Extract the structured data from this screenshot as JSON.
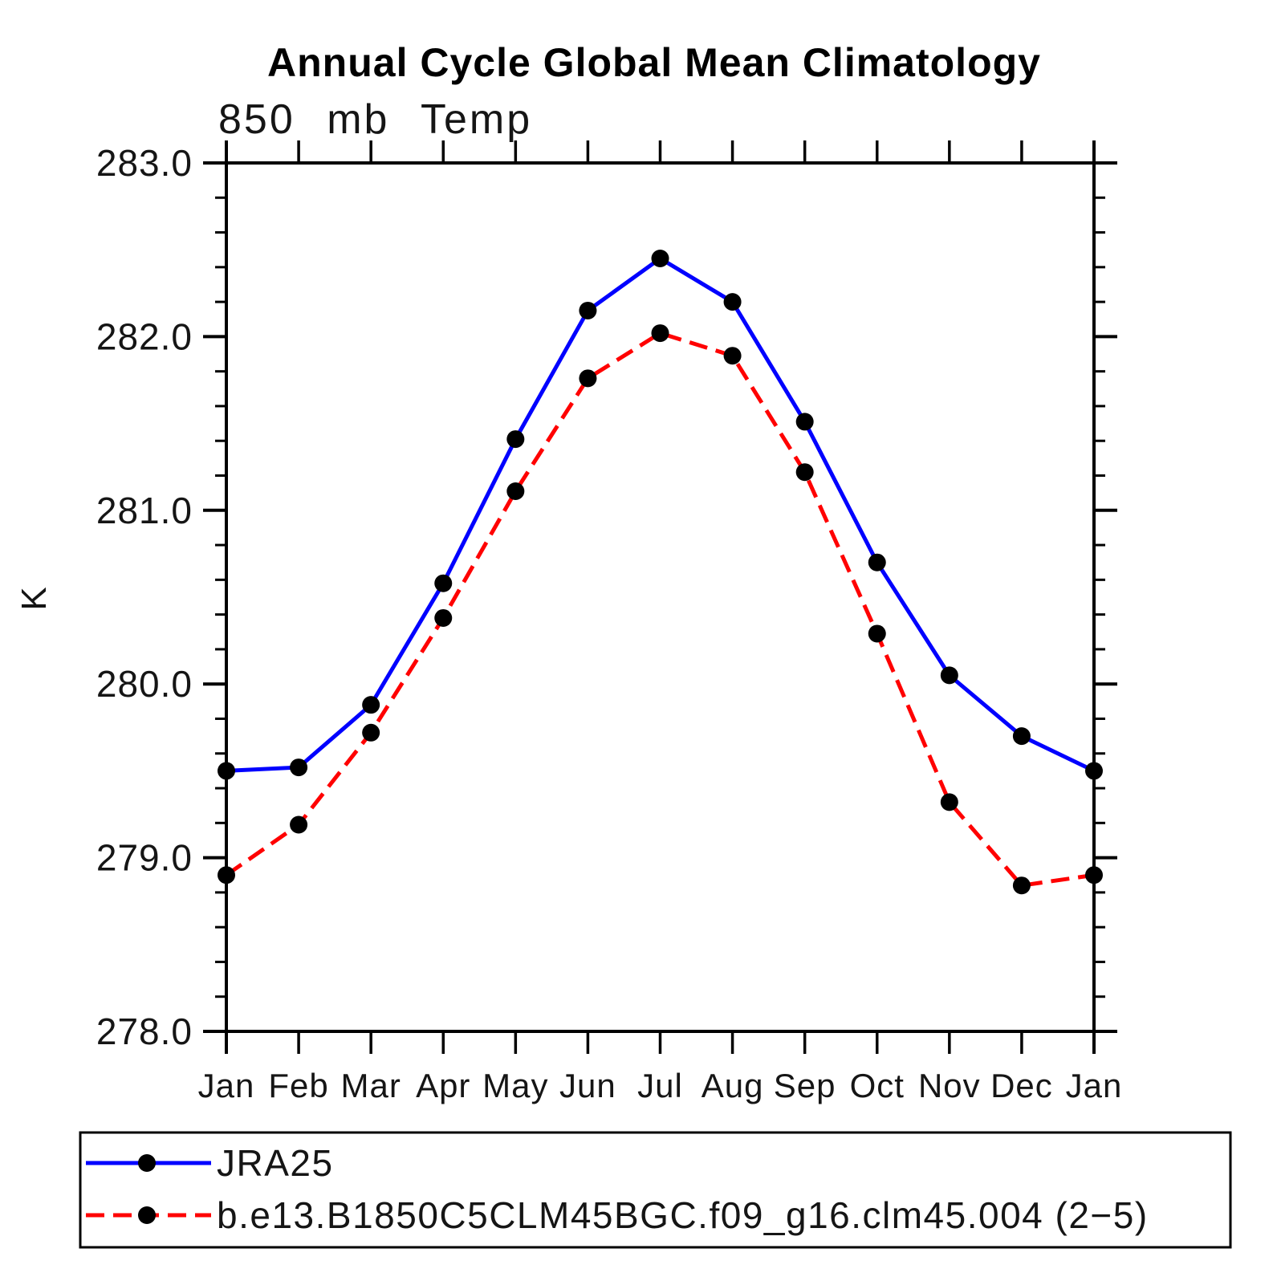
{
  "chart_data": {
    "type": "line",
    "title": "Annual Cycle Global Mean Climatology",
    "subtitle": "850 mb Temp",
    "ylabel": "K",
    "categories": [
      "Jan",
      "Feb",
      "Mar",
      "Apr",
      "May",
      "Jun",
      "Jul",
      "Aug",
      "Sep",
      "Oct",
      "Nov",
      "Dec",
      "Jan"
    ],
    "ylim": [
      278.0,
      283.0
    ],
    "yticks": [
      278.0,
      279.0,
      280.0,
      281.0,
      282.0,
      283.0
    ],
    "ytick_labels": [
      "278.0",
      "279.0",
      "280.0",
      "281.0",
      "282.0",
      "283.0"
    ],
    "minor_tick_step": 0.2,
    "grid": false,
    "legend_position": "bottom-left-box",
    "axis_color": "#000000",
    "marker_color": "#000000",
    "marker_shape": "filled-circle",
    "series": [
      {
        "name": "JRA25",
        "color": "#0000ff",
        "line_style": "solid",
        "values": [
          279.5,
          279.52,
          279.88,
          280.58,
          281.41,
          282.15,
          282.45,
          282.2,
          281.51,
          280.7,
          280.05,
          279.7,
          279.5
        ]
      },
      {
        "name": "b.e13.B1850C5CLM45BGC.f09_g16.clm45.004 (2−5)",
        "color": "#ff0000",
        "line_style": "dashed",
        "values": [
          278.9,
          279.19,
          279.72,
          280.38,
          281.11,
          281.76,
          282.02,
          281.89,
          281.22,
          280.29,
          279.32,
          278.84,
          278.9
        ]
      }
    ]
  }
}
